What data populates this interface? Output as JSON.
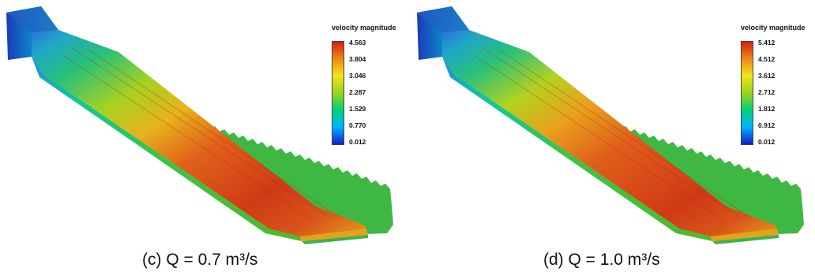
{
  "panels": [
    {
      "caption": "(c) Q = 0.7 m³/s",
      "legend_title": "velocity magnitude",
      "legend_ticks": [
        "4.563",
        "3.804",
        "3.046",
        "2.287",
        "1.529",
        "0.770",
        "0.012"
      ]
    },
    {
      "caption": "(d) Q = 1.0 m³/s",
      "legend_title": "velocity magnitude",
      "legend_ticks": [
        "5.412",
        "4.512",
        "3.612",
        "2.712",
        "1.812",
        "0.912",
        "0.012"
      ]
    }
  ],
  "colormap": [
    "#1020c8",
    "#00b4ff",
    "#00d27a",
    "#9bd31a",
    "#f1e41c",
    "#f08a14",
    "#d21f14"
  ]
}
